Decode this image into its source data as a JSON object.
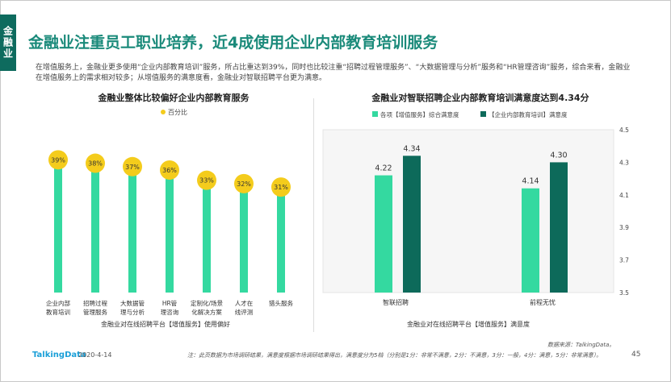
{
  "side_tag": "金融业",
  "title": "金融业注重员工职业培养，近4成使用企业内部教育培训服务",
  "description": "在增值服务上，金融业更多使用“企业内部教育培训”服务，所占比重达到39%，同时也比较注重“招聘过程管理服务”、“大数据管理与分析”服务和“HR管理咨询”服务，综合来看，金融业在增值服务上的需求相对较多；从增值服务的满意度看，金融业对智联招聘平台更为满意。",
  "source": "数据来源：TalkingData。",
  "footer": {
    "logo": "TalkingData",
    "date": "2020-4-14",
    "note": "注：此页数据为市场调研结果，满意度根据市场调研结果得出，满意度分为5档（分别是1分：非常不满意，2分：不满意，3分：一般，4分：满意，5分：非常满意）。",
    "page": "45"
  },
  "colors": {
    "brand": "#0e6b5e",
    "title": "#1a8a7a",
    "green": "#34d9a0",
    "dark_green": "#0d6a5a",
    "yellow": "#f4cc1c"
  },
  "chart_data": [
    {
      "type": "bar",
      "title": "金融业整体比较偏好企业内部教育服务",
      "legend": [
        "百分比"
      ],
      "xlabel": "金融业对在线招聘平台【增值服务】使用偏好",
      "ylabel": "",
      "categories": [
        [
          "企业内部",
          "教育培训"
        ],
        [
          "招聘过程",
          "管理服务"
        ],
        [
          "大数据管",
          "理与分析"
        ],
        [
          "HR管",
          "理咨询"
        ],
        [
          "定制化/场景",
          "化解决方案"
        ],
        [
          "人才在",
          "线评测"
        ],
        [
          "猎头服务"
        ]
      ],
      "values": [
        39,
        38,
        37,
        36,
        33,
        32,
        31
      ],
      "value_labels": [
        "39%",
        "38%",
        "37%",
        "36%",
        "33%",
        "32%",
        "31%"
      ],
      "ylim": [
        0,
        45
      ],
      "grid": false
    },
    {
      "type": "bar",
      "title": "金融业对智联招聘企业内部教育培训满意度达到4.34分",
      "legend": [
        "各项【增值服务】综合满意度",
        "【企业内部教育培训】满意度"
      ],
      "legend_position": "top",
      "xlabel": "金融业对在线招聘平台【增值服务】满意度",
      "ylabel": "",
      "categories": [
        "智联招聘",
        "前程无忧"
      ],
      "series": [
        {
          "name": "各项【增值服务】综合满意度",
          "values": [
            4.22,
            4.14
          ],
          "labels": [
            "4.22",
            "4.14"
          ]
        },
        {
          "name": "【企业内部教育培训】满意度",
          "values": [
            4.34,
            4.3
          ],
          "labels": [
            "4.34",
            "4.30"
          ]
        }
      ],
      "ylim": [
        3.5,
        4.5
      ],
      "yticks": [
        "4.5",
        "4.3",
        "4.1",
        "3.9",
        "3.7",
        "3.5"
      ],
      "y_axis_position": "right",
      "grid": false
    }
  ]
}
